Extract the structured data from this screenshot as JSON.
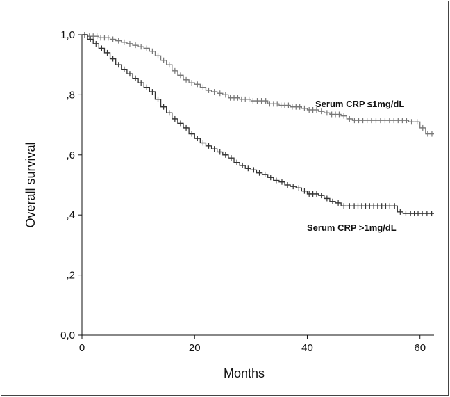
{
  "chart_data": {
    "type": "line",
    "chart_kind": "kaplan-meier survival curve",
    "xlabel": "Months",
    "ylabel": "Overall survival",
    "xlim": [
      0,
      62.5
    ],
    "ylim": [
      0,
      1.0
    ],
    "x_ticks": [
      0,
      20,
      40,
      60
    ],
    "x_tick_labels": [
      "0",
      "20",
      "40",
      "60"
    ],
    "y_ticks": [
      0,
      0.2,
      0.4,
      0.6,
      0.8,
      1.0
    ],
    "y_tick_labels": [
      "0,0",
      ",2",
      ",4",
      ",6",
      ",8",
      "1,0"
    ],
    "grid": false,
    "series": [
      {
        "name": "Serum CRP ≤1mg/dL",
        "color": "#777777",
        "x": [
          0,
          1,
          3,
          5,
          6,
          7,
          8,
          9,
          10,
          11,
          12,
          13,
          14,
          15,
          16,
          17,
          18,
          19,
          20,
          21,
          22,
          23,
          24,
          25,
          26,
          28,
          30,
          33,
          35,
          37,
          39,
          40,
          42,
          43,
          44,
          46,
          47,
          48,
          51,
          55,
          58,
          59,
          60,
          61,
          62.5
        ],
        "y": [
          1.0,
          0.995,
          0.99,
          0.985,
          0.98,
          0.975,
          0.97,
          0.965,
          0.96,
          0.955,
          0.945,
          0.93,
          0.915,
          0.9,
          0.88,
          0.865,
          0.85,
          0.84,
          0.835,
          0.825,
          0.815,
          0.81,
          0.805,
          0.8,
          0.79,
          0.785,
          0.78,
          0.77,
          0.765,
          0.76,
          0.755,
          0.75,
          0.745,
          0.74,
          0.735,
          0.73,
          0.72,
          0.715,
          0.715,
          0.715,
          0.71,
          0.71,
          0.69,
          0.67,
          0.67
        ]
      },
      {
        "name": "Serum CRP >1mg/dL",
        "color": "#333333",
        "x": [
          0,
          1,
          2,
          3,
          4,
          5,
          6,
          7,
          8,
          9,
          10,
          11,
          12,
          13,
          14,
          15,
          16,
          17,
          18,
          19,
          20,
          21,
          22,
          23,
          24,
          25,
          26,
          27,
          28,
          29,
          30,
          31,
          32,
          33,
          34,
          35,
          36,
          37,
          38,
          39,
          40,
          42,
          43,
          44,
          45,
          46,
          47,
          48,
          50,
          55,
          56,
          57,
          58,
          60,
          62.5
        ],
        "y": [
          1.0,
          0.985,
          0.97,
          0.955,
          0.94,
          0.92,
          0.9,
          0.885,
          0.87,
          0.855,
          0.84,
          0.825,
          0.81,
          0.785,
          0.76,
          0.74,
          0.72,
          0.705,
          0.69,
          0.67,
          0.655,
          0.64,
          0.63,
          0.62,
          0.61,
          0.6,
          0.59,
          0.575,
          0.565,
          0.555,
          0.55,
          0.54,
          0.535,
          0.525,
          0.515,
          0.51,
          0.5,
          0.495,
          0.49,
          0.48,
          0.47,
          0.465,
          0.455,
          0.445,
          0.44,
          0.43,
          0.43,
          0.43,
          0.43,
          0.43,
          0.41,
          0.405,
          0.405,
          0.405,
          0.405
        ]
      }
    ],
    "annotations": [
      {
        "text": "Serum CRP ≤1mg/dL",
        "series": 0
      },
      {
        "text": "Serum CRP >1mg/dL",
        "series": 1
      }
    ]
  }
}
